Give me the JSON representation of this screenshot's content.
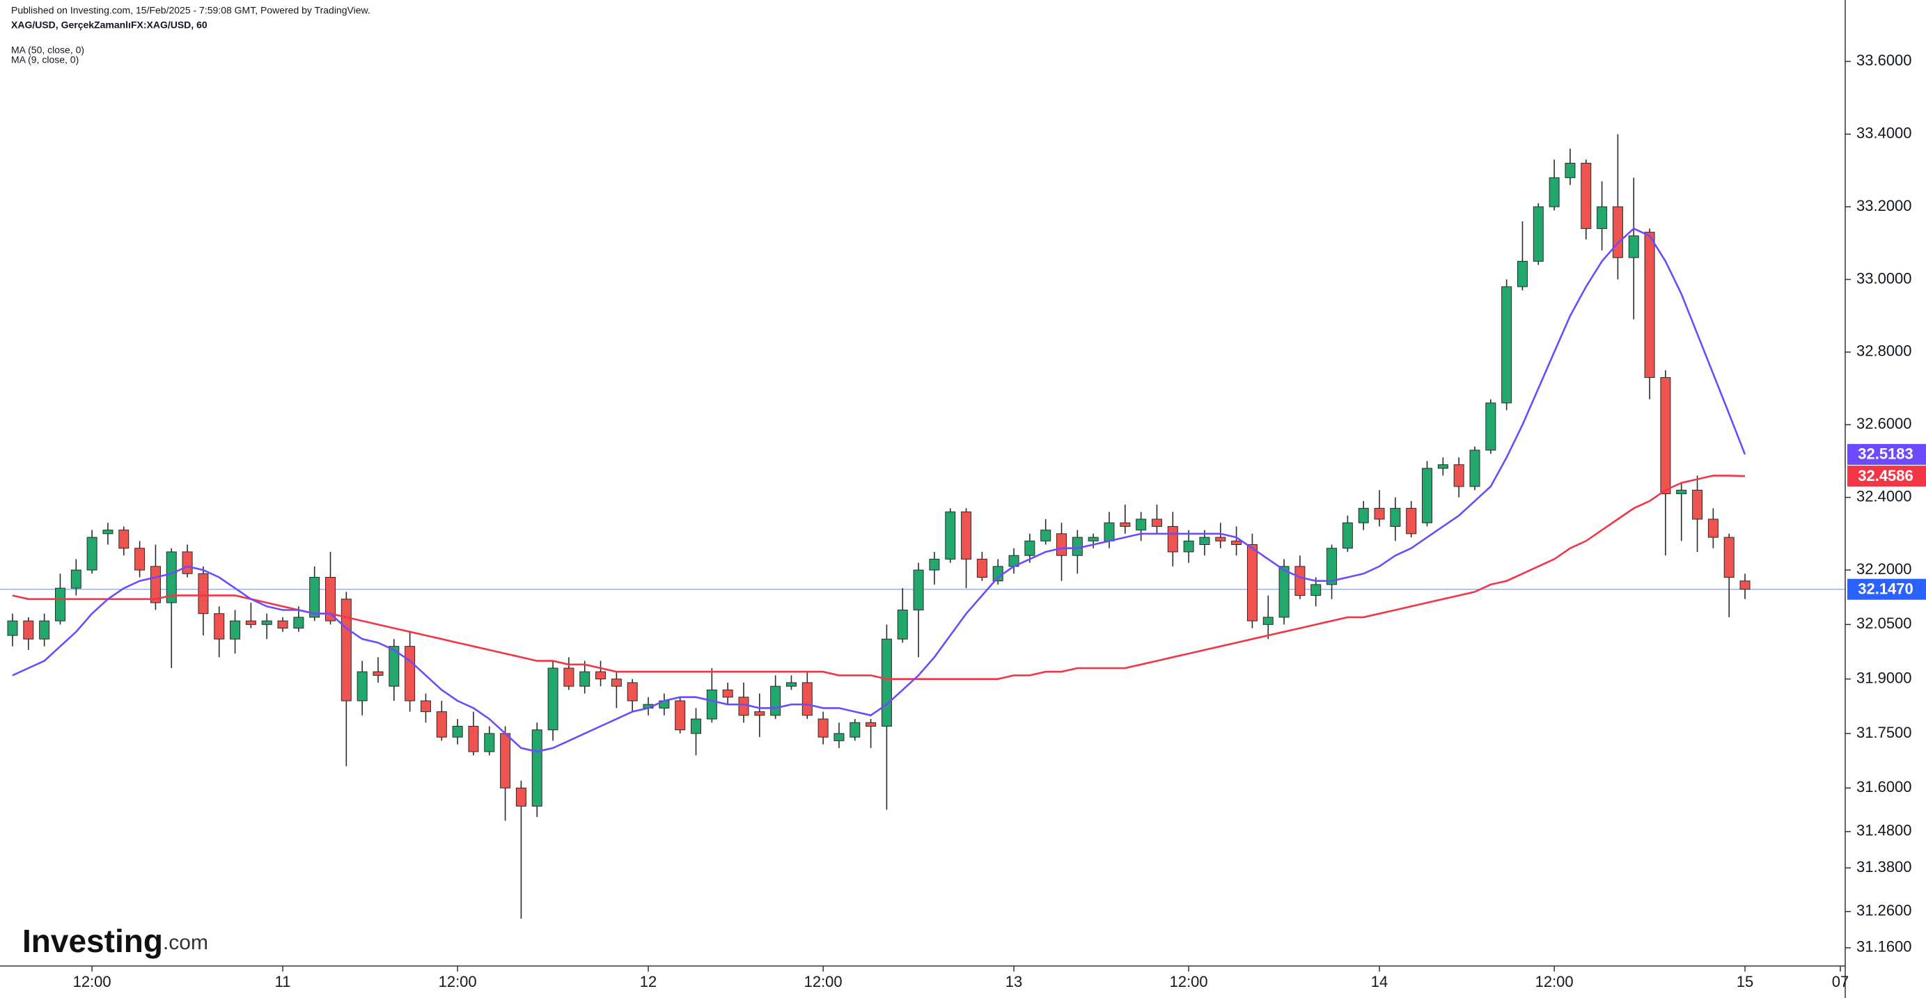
{
  "chart_data": {
    "type": "candlestick",
    "published": "Published on Investing.com, 15/Feb/2025 - 7:59:08 GMT, Powered by TradingView.",
    "title": "XAG/USD, GerçekZamanlıFX:XAG/USD, 60",
    "logo": {
      "main": "Investing",
      "suffix": ".com"
    },
    "up_color": "#22a86c",
    "down_color": "#ef5350",
    "categories": [
      null,
      null,
      null,
      null,
      null,
      "12:00",
      null,
      null,
      null,
      null,
      null,
      null,
      null,
      null,
      null,
      null,
      null,
      "11",
      null,
      null,
      null,
      null,
      null,
      null,
      null,
      null,
      null,
      null,
      "12:00",
      null,
      null,
      null,
      null,
      null,
      null,
      null,
      null,
      null,
      null,
      null,
      "12",
      null,
      null,
      null,
      null,
      null,
      null,
      null,
      null,
      null,
      null,
      "12:00",
      null,
      null,
      null,
      null,
      null,
      null,
      null,
      null,
      null,
      null,
      null,
      "13",
      null,
      null,
      null,
      null,
      null,
      null,
      null,
      null,
      null,
      null,
      "12:00",
      null,
      null,
      null,
      null,
      null,
      null,
      null,
      null,
      null,
      null,
      null,
      "14",
      null,
      null,
      null,
      null,
      null,
      null,
      null,
      null,
      null,
      null,
      "12:00",
      null,
      null,
      null,
      null,
      null,
      null,
      null,
      null,
      null,
      null,
      null,
      "15",
      null,
      null,
      null,
      null,
      null,
      "07"
    ],
    "open": [
      32.02,
      32.06,
      32.01,
      32.06,
      32.15,
      32.2,
      32.3,
      32.31,
      32.26,
      32.21,
      32.11,
      32.25,
      32.19,
      32.08,
      32.01,
      32.06,
      32.05,
      32.06,
      32.04,
      32.07,
      32.18,
      32.12,
      31.84,
      31.92,
      31.88,
      31.99,
      31.84,
      31.81,
      31.74,
      31.77,
      31.7,
      31.75,
      31.6,
      31.55,
      31.76,
      31.93,
      31.88,
      31.92,
      31.9,
      31.89,
      31.82,
      31.82,
      31.84,
      31.75,
      31.79,
      31.87,
      31.85,
      31.81,
      31.8,
      31.88,
      31.89,
      31.79,
      31.73,
      31.74,
      31.78,
      31.77,
      32.01,
      32.09,
      32.2,
      32.23,
      32.36,
      32.23,
      32.17,
      32.21,
      32.24,
      32.28,
      32.3,
      32.24,
      32.28,
      32.28,
      32.33,
      32.31,
      32.34,
      32.32,
      32.25,
      32.27,
      32.29,
      32.28,
      32.27,
      32.05,
      32.07,
      32.21,
      32.13,
      32.16,
      32.26,
      32.33,
      32.37,
      32.32,
      32.37,
      32.33,
      32.48,
      32.49,
      32.43,
      32.53,
      32.66,
      32.98,
      33.05,
      33.2,
      33.28,
      33.32,
      33.14,
      33.2,
      33.06,
      33.13,
      32.73,
      32.41,
      32.42,
      32.34,
      32.29,
      32.17,
      null,
      null,
      null,
      null,
      null,
      null
    ],
    "high": [
      32.08,
      32.07,
      32.08,
      32.19,
      32.23,
      32.31,
      32.33,
      32.32,
      32.28,
      32.27,
      32.26,
      32.27,
      32.21,
      32.1,
      32.09,
      32.11,
      32.08,
      32.07,
      32.1,
      32.21,
      32.25,
      32.14,
      31.95,
      31.96,
      32.01,
      32.03,
      31.86,
      31.84,
      31.79,
      31.81,
      31.77,
      31.77,
      31.62,
      31.78,
      31.95,
      31.96,
      31.95,
      31.95,
      31.92,
      31.9,
      31.85,
      31.86,
      31.85,
      31.82,
      31.93,
      31.89,
      31.89,
      31.86,
      31.91,
      31.91,
      31.92,
      31.81,
      31.78,
      31.79,
      31.79,
      32.05,
      32.15,
      32.22,
      32.25,
      32.37,
      32.37,
      32.25,
      32.23,
      32.26,
      32.3,
      32.34,
      32.33,
      32.31,
      32.3,
      32.36,
      32.38,
      32.36,
      32.38,
      32.36,
      32.31,
      32.31,
      32.33,
      32.32,
      32.3,
      32.13,
      32.23,
      32.24,
      32.18,
      32.27,
      32.35,
      32.39,
      32.42,
      32.4,
      32.39,
      32.5,
      32.51,
      32.51,
      32.54,
      32.67,
      33.0,
      33.16,
      33.21,
      33.33,
      33.36,
      33.33,
      33.27,
      33.4,
      33.28,
      33.14,
      32.75,
      32.44,
      32.46,
      32.37,
      32.3,
      32.19,
      null,
      null,
      null,
      null,
      null,
      null
    ],
    "low": [
      31.99,
      31.98,
      31.99,
      32.05,
      32.13,
      32.19,
      32.27,
      32.24,
      32.18,
      32.09,
      31.93,
      32.18,
      32.02,
      31.96,
      31.97,
      32.04,
      32.01,
      32.03,
      32.03,
      32.06,
      32.05,
      31.66,
      31.8,
      31.89,
      31.84,
      31.81,
      31.78,
      31.73,
      31.72,
      31.69,
      31.69,
      31.51,
      31.24,
      31.52,
      31.73,
      31.87,
      31.86,
      31.88,
      31.82,
      31.81,
      31.8,
      31.8,
      31.75,
      31.69,
      31.78,
      31.83,
      31.78,
      31.74,
      31.79,
      31.87,
      31.79,
      31.72,
      31.71,
      31.73,
      31.71,
      31.54,
      32.0,
      31.96,
      32.16,
      32.22,
      32.15,
      32.17,
      32.16,
      32.19,
      32.22,
      32.27,
      32.17,
      32.19,
      32.26,
      32.26,
      32.3,
      32.28,
      32.3,
      32.21,
      32.22,
      32.24,
      32.26,
      32.24,
      32.04,
      32.01,
      32.05,
      32.12,
      32.1,
      32.12,
      32.25,
      32.31,
      32.32,
      32.28,
      32.29,
      32.32,
      32.46,
      32.4,
      32.42,
      32.52,
      32.64,
      32.97,
      33.04,
      33.19,
      33.26,
      33.11,
      33.08,
      33.0,
      32.89,
      32.67,
      32.24,
      32.28,
      32.25,
      32.26,
      32.07,
      32.12,
      null,
      null,
      null,
      null,
      null,
      null
    ],
    "close": [
      32.06,
      32.01,
      32.06,
      32.15,
      32.2,
      32.29,
      32.31,
      32.26,
      32.2,
      32.11,
      32.25,
      32.19,
      32.08,
      32.01,
      32.06,
      32.05,
      32.06,
      32.04,
      32.07,
      32.18,
      32.06,
      31.84,
      31.92,
      31.91,
      31.99,
      31.84,
      31.81,
      31.74,
      31.77,
      31.7,
      31.75,
      31.6,
      31.55,
      31.76,
      31.93,
      31.88,
      31.92,
      31.9,
      31.88,
      31.84,
      31.83,
      31.84,
      31.76,
      31.79,
      31.87,
      31.85,
      31.8,
      31.8,
      31.88,
      31.89,
      31.8,
      31.74,
      31.75,
      31.78,
      31.77,
      32.01,
      32.09,
      32.2,
      32.23,
      32.36,
      32.23,
      32.18,
      32.21,
      32.24,
      32.28,
      32.31,
      32.24,
      32.29,
      32.29,
      32.33,
      32.32,
      32.34,
      32.32,
      32.25,
      32.28,
      32.29,
      32.28,
      32.27,
      32.06,
      32.07,
      32.21,
      32.13,
      32.16,
      32.26,
      32.33,
      32.37,
      32.34,
      32.37,
      32.3,
      32.48,
      32.49,
      32.43,
      32.53,
      32.66,
      32.98,
      33.05,
      33.2,
      33.28,
      33.32,
      33.14,
      33.2,
      33.06,
      33.12,
      32.73,
      32.41,
      32.42,
      32.34,
      32.29,
      32.18,
      32.147,
      null,
      null,
      null,
      null,
      null,
      null
    ],
    "series": [
      {
        "name": "MA (50, close, 0)",
        "color": "#f23645",
        "values": [
          32.13,
          32.12,
          32.12,
          32.12,
          32.12,
          32.12,
          32.12,
          32.12,
          32.12,
          32.12,
          32.13,
          32.13,
          32.13,
          32.13,
          32.13,
          32.12,
          32.11,
          32.1,
          32.09,
          32.08,
          32.08,
          32.07,
          32.06,
          32.05,
          32.04,
          32.03,
          32.02,
          32.01,
          32.0,
          31.99,
          31.98,
          31.97,
          31.96,
          31.95,
          31.95,
          31.94,
          31.94,
          31.93,
          31.92,
          31.92,
          31.92,
          31.92,
          31.92,
          31.92,
          31.92,
          31.92,
          31.92,
          31.92,
          31.92,
          31.92,
          31.92,
          31.92,
          31.91,
          31.91,
          31.91,
          31.9,
          31.9,
          31.9,
          31.9,
          31.9,
          31.9,
          31.9,
          31.9,
          31.91,
          31.91,
          31.92,
          31.92,
          31.93,
          31.93,
          31.93,
          31.93,
          31.94,
          31.95,
          31.96,
          31.97,
          31.98,
          31.99,
          32.0,
          32.01,
          32.02,
          32.03,
          32.04,
          32.05,
          32.06,
          32.07,
          32.07,
          32.08,
          32.09,
          32.1,
          32.11,
          32.12,
          32.13,
          32.14,
          32.16,
          32.17,
          32.19,
          32.21,
          32.23,
          32.26,
          32.28,
          32.31,
          32.34,
          32.37,
          32.39,
          32.42,
          32.44,
          32.45,
          32.46,
          32.46,
          32.4586,
          null,
          null,
          null,
          null,
          null,
          null
        ]
      },
      {
        "name": "MA (9, close, 0)",
        "color": "#6d4aff",
        "values": [
          31.91,
          31.93,
          31.95,
          31.99,
          32.03,
          32.08,
          32.12,
          32.15,
          32.17,
          32.18,
          32.19,
          32.21,
          32.2,
          32.18,
          32.15,
          32.12,
          32.1,
          32.09,
          32.09,
          32.08,
          32.08,
          32.04,
          32.01,
          32.0,
          31.98,
          31.95,
          31.91,
          31.87,
          31.84,
          31.82,
          31.79,
          31.75,
          31.71,
          31.7,
          31.71,
          31.73,
          31.75,
          31.77,
          31.79,
          31.81,
          31.82,
          31.84,
          31.85,
          31.85,
          31.84,
          31.83,
          31.83,
          31.82,
          31.82,
          31.83,
          31.83,
          31.82,
          31.82,
          31.81,
          31.8,
          31.83,
          31.87,
          31.91,
          31.96,
          32.02,
          32.08,
          32.13,
          32.18,
          32.21,
          32.23,
          32.25,
          32.26,
          32.26,
          32.27,
          32.28,
          32.29,
          32.3,
          32.3,
          32.3,
          32.3,
          32.3,
          32.3,
          32.29,
          32.26,
          32.23,
          32.2,
          32.18,
          32.17,
          32.17,
          32.18,
          32.19,
          32.21,
          32.24,
          32.26,
          32.29,
          32.32,
          32.35,
          32.39,
          32.43,
          32.51,
          32.6,
          32.7,
          32.8,
          32.9,
          32.98,
          33.05,
          33.1,
          33.14,
          33.12,
          33.05,
          32.96,
          32.85,
          32.74,
          32.63,
          32.5183,
          null,
          null,
          null,
          null,
          null,
          null
        ]
      }
    ],
    "last_price": {
      "value": 32.147,
      "label": "32.1470",
      "color": "#2962ff"
    },
    "ylim": [
      31.11,
      33.66
    ],
    "yticks": [
      {
        "value": 33.6,
        "label": "33.6000"
      },
      {
        "value": 33.4,
        "label": "33.4000"
      },
      {
        "value": 33.2,
        "label": "33.2000"
      },
      {
        "value": 33.0,
        "label": "33.0000"
      },
      {
        "value": 32.8,
        "label": "32.8000"
      },
      {
        "value": 32.6,
        "label": "32.6000"
      },
      {
        "value": 32.4,
        "label": "32.4000"
      },
      {
        "value": 32.2,
        "label": "32.2000"
      },
      {
        "value": 32.05,
        "label": "32.0500"
      },
      {
        "value": 31.9,
        "label": "31.9000"
      },
      {
        "value": 31.75,
        "label": "31.7500"
      },
      {
        "value": 31.6,
        "label": "31.6000"
      },
      {
        "value": 31.48,
        "label": "31.4800"
      },
      {
        "value": 31.38,
        "label": "31.3800"
      },
      {
        "value": 31.26,
        "label": "31.2600"
      },
      {
        "value": 31.16,
        "label": "31.1600"
      }
    ]
  }
}
